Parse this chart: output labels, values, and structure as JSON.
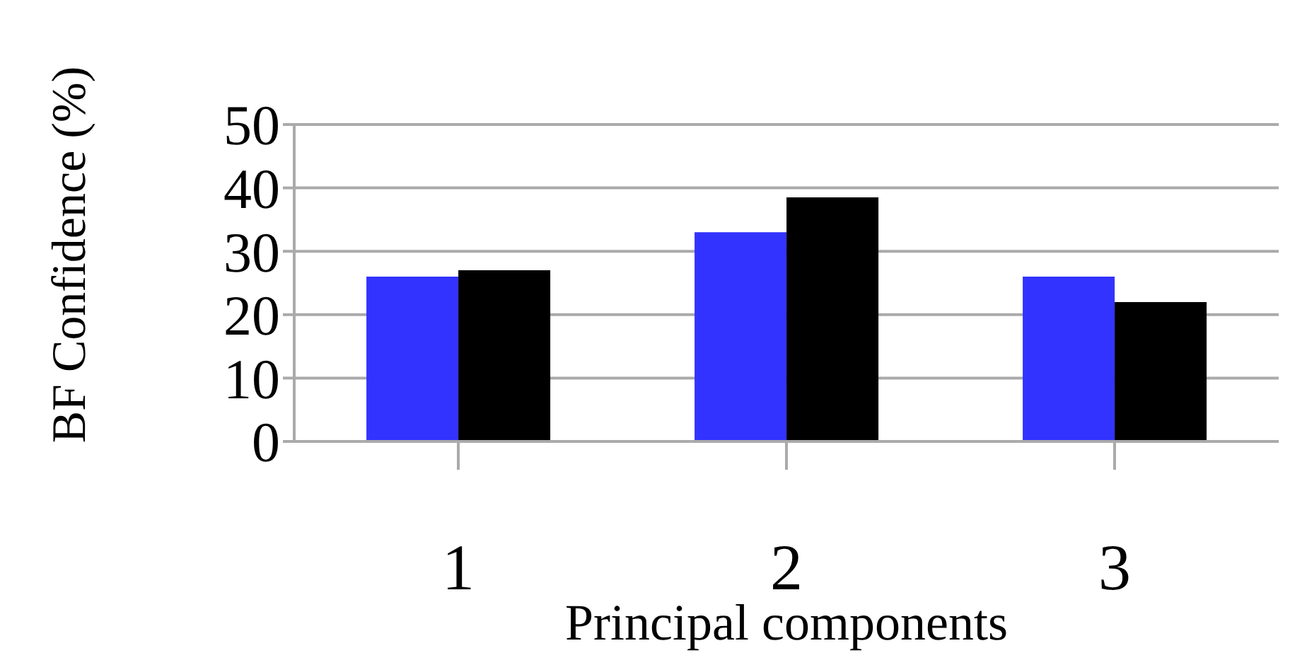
{
  "chart_data": {
    "type": "bar",
    "xlabel": "Principal components",
    "ylabel": "BF Confidence (%)",
    "categories": [
      "1",
      "2",
      "3"
    ],
    "series": [
      {
        "color": "#3333ff",
        "values": [
          26,
          33,
          26
        ]
      },
      {
        "color": "#000000",
        "values": [
          27,
          38.5,
          22
        ]
      }
    ],
    "ylim": [
      0,
      50
    ],
    "yticks": [
      0,
      10,
      20,
      30,
      40,
      50
    ],
    "grid": "y"
  }
}
